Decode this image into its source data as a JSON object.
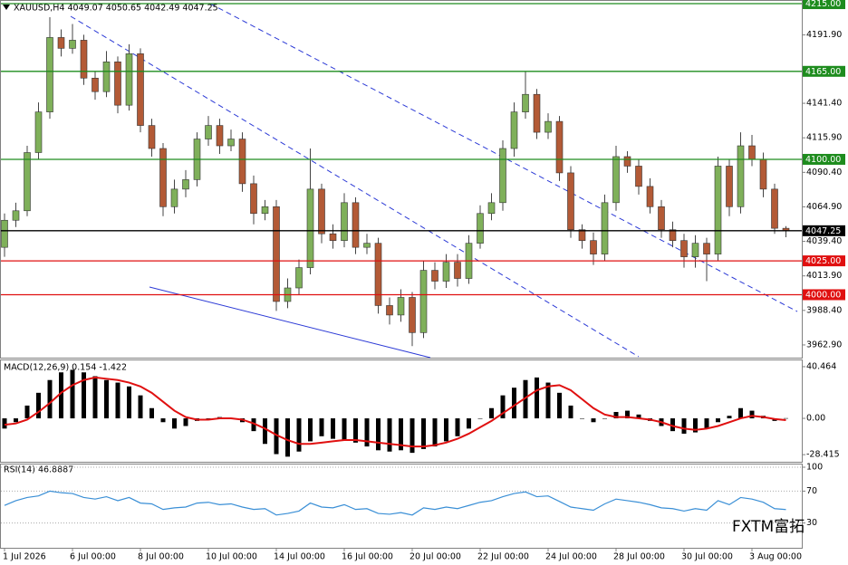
{
  "chart_data": [
    {
      "type": "candlestick",
      "title": "XAUUSD,H4  4049.07 4050.65 4042.49 4047.25",
      "watermark": "FXTM富拓",
      "categories": [
        "1 Jul 2026",
        null,
        null,
        null,
        null,
        null,
        "6 Jul 00:00",
        null,
        null,
        null,
        null,
        null,
        "8 Jul 00:00",
        null,
        null,
        null,
        null,
        null,
        "10 Jul 00:00",
        null,
        null,
        null,
        null,
        null,
        "14 Jul 00:00",
        null,
        null,
        null,
        null,
        null,
        "16 Jul 00:00",
        null,
        null,
        null,
        null,
        null,
        "20 Jul 00:00",
        null,
        null,
        null,
        null,
        null,
        "22 Jul 00:00",
        null,
        null,
        null,
        null,
        null,
        "24 Jul 00:00",
        null,
        null,
        null,
        null,
        null,
        "28 Jul 00:00",
        null,
        null,
        null,
        null,
        null,
        "30 Jul 00:00",
        null,
        null,
        null,
        null,
        null,
        "3 Aug 00:00",
        null,
        null,
        null
      ],
      "open": [
        4035,
        4055,
        4062,
        4105,
        4135,
        4190,
        4182,
        4188,
        4160,
        4150,
        4172,
        4140,
        4178,
        4125,
        4108,
        4065,
        4078,
        4085,
        4115,
        4125,
        4110,
        4115,
        4082,
        4060,
        4065,
        3995,
        4005,
        4020,
        4078,
        4045,
        4040,
        4068,
        4035,
        4038,
        3992,
        3985,
        3998,
        3972,
        4018,
        4010,
        4024,
        4012,
        4038,
        4060,
        4068,
        4108,
        4135,
        4148,
        4120,
        4128,
        4090,
        4048,
        4040,
        4030,
        4068,
        4102,
        4095,
        4080,
        4065,
        4048,
        4040,
        4028,
        4038,
        4030,
        4095,
        4065,
        4110,
        4100,
        4078,
        4049.07
      ],
      "high": [
        4060,
        4068,
        4110,
        4142,
        4205,
        4196,
        4200,
        4192,
        4165,
        4180,
        4176,
        4185,
        4182,
        4130,
        4112,
        4085,
        4092,
        4120,
        4132,
        4130,
        4122,
        4120,
        4088,
        4070,
        4070,
        4012,
        4026,
        4108,
        4082,
        4052,
        4075,
        4072,
        4045,
        4042,
        3998,
        4004,
        4002,
        4025,
        4024,
        4030,
        4030,
        4044,
        4066,
        4075,
        4114,
        4142,
        4165,
        4152,
        4134,
        4132,
        4095,
        4052,
        4046,
        4074,
        4110,
        4106,
        4100,
        4086,
        4070,
        4054,
        4045,
        4044,
        4042,
        4102,
        4100,
        4120,
        4118,
        4105,
        4082,
        4050.65
      ],
      "low": [
        4028,
        4050,
        4058,
        4100,
        4130,
        4176,
        4178,
        4155,
        4144,
        4146,
        4134,
        4136,
        4120,
        4102,
        4058,
        4060,
        4072,
        4080,
        4110,
        4104,
        4106,
        4076,
        4052,
        4055,
        3988,
        3990,
        4000,
        4015,
        4038,
        4034,
        4035,
        4030,
        4030,
        3986,
        3978,
        3980,
        3962,
        3968,
        4004,
        4005,
        4006,
        4008,
        4034,
        4055,
        4062,
        4102,
        4130,
        4115,
        4115,
        4084,
        4042,
        4034,
        4022,
        4025,
        4062,
        4090,
        4074,
        4060,
        4042,
        4035,
        4020,
        4020,
        4010,
        4025,
        4058,
        4060,
        4095,
        4072,
        4045,
        4042.49
      ],
      "close": [
        4055,
        4062,
        4105,
        4135,
        4190,
        4182,
        4188,
        4160,
        4150,
        4172,
        4140,
        4178,
        4125,
        4108,
        4065,
        4078,
        4085,
        4115,
        4125,
        4110,
        4115,
        4082,
        4060,
        4065,
        3995,
        4005,
        4020,
        4078,
        4045,
        4040,
        4068,
        4035,
        4038,
        3992,
        3985,
        3998,
        3972,
        4018,
        4010,
        4024,
        4012,
        4038,
        4060,
        4068,
        4108,
        4135,
        4148,
        4120,
        4128,
        4090,
        4048,
        4040,
        4030,
        4068,
        4102,
        4095,
        4080,
        4065,
        4048,
        4040,
        4028,
        4038,
        4030,
        4095,
        4065,
        4110,
        4100,
        4078,
        4049.07,
        4047.25
      ],
      "up_color": "#7fb05a",
      "down_color": "#b35a36",
      "ylim": [
        3953.5,
        4217.7
      ],
      "yticks": [
        {
          "value": 4191.9,
          "label": "4191.90"
        },
        {
          "value": 4141.4,
          "label": "4141.40"
        },
        {
          "value": 4115.9,
          "label": "4115.90"
        },
        {
          "value": 4090.4,
          "label": "4090.40"
        },
        {
          "value": 4064.9,
          "label": "4064.90"
        },
        {
          "value": 4039.4,
          "label": "4039.40"
        },
        {
          "value": 4013.9,
          "label": "4013.90"
        },
        {
          "value": 3988.4,
          "label": "3988.40"
        },
        {
          "value": 3962.9,
          "label": "3962.90"
        }
      ],
      "hlines": [
        {
          "value": 4215,
          "label": "4215.00",
          "color": "#1e8c1e"
        },
        {
          "value": 4165,
          "label": "4165.00",
          "color": "#1e8c1e"
        },
        {
          "value": 4100,
          "label": "4100.00",
          "color": "#1e8c1e"
        },
        {
          "value": 4047.25,
          "label": "4047.25",
          "color": "#000000"
        },
        {
          "value": 4025,
          "label": "4025.00",
          "color": "#e01010"
        },
        {
          "value": 4000,
          "label": "4000.00",
          "color": "#e01010"
        }
      ]
    },
    {
      "type": "macd",
      "title": "MACD(12,26,9) 0.154 -1.422",
      "histogram": {
        "color": "#000000",
        "values": [
          -8,
          -3,
          10,
          20,
          30,
          36,
          38,
          36,
          33,
          30,
          28,
          25,
          18,
          8,
          -3,
          -8,
          -6,
          -2,
          0,
          1,
          0,
          -3,
          -10,
          -20,
          -28,
          -30,
          -26,
          -18,
          -14,
          -16,
          -17,
          -19,
          -22,
          -25,
          -26,
          -25,
          -27,
          -24,
          -22,
          -18,
          -14,
          -8,
          0,
          8,
          18,
          24,
          30,
          32,
          28,
          20,
          10,
          0,
          -3,
          0,
          5,
          6,
          3,
          -2,
          -6,
          -10,
          -12,
          -11,
          -8,
          -3,
          2,
          8,
          6,
          2,
          -2,
          0.154
        ]
      },
      "signal": {
        "color": "#e01010",
        "values": [
          -5,
          -4,
          -1,
          5,
          12,
          20,
          26,
          30,
          32,
          31,
          30,
          28,
          25,
          20,
          13,
          6,
          1,
          -1,
          -1,
          0,
          0,
          -1,
          -4,
          -8,
          -13,
          -17,
          -20,
          -20,
          -19,
          -18,
          -17,
          -17,
          -18,
          -19,
          -20,
          -21,
          -22,
          -22,
          -21,
          -19,
          -16,
          -12,
          -7,
          -2,
          4,
          10,
          16,
          22,
          25,
          26,
          22,
          15,
          8,
          3,
          1,
          1,
          0,
          -1,
          -3,
          -6,
          -8,
          -9,
          -8,
          -6,
          -3,
          0,
          2,
          1,
          -0.5,
          -1.422
        ]
      },
      "ylim": [
        -34,
        45.4
      ],
      "yticks": [
        40.464,
        {
          "value": 0,
          "label": "0.00"
        },
        -28.415
      ]
    },
    {
      "type": "line",
      "title": "RSI(14) 46.8887",
      "color": "#3a8fd6",
      "values": [
        52,
        58,
        62,
        64,
        70,
        68,
        67,
        62,
        60,
        63,
        58,
        62,
        55,
        54,
        47,
        49,
        50,
        55,
        56,
        53,
        54,
        50,
        47,
        48,
        40,
        42,
        45,
        55,
        50,
        49,
        53,
        47,
        48,
        42,
        41,
        43,
        40,
        49,
        47,
        50,
        48,
        52,
        56,
        58,
        63,
        67,
        69,
        63,
        64,
        57,
        50,
        48,
        46,
        54,
        60,
        58,
        56,
        53,
        49,
        48,
        45,
        48,
        46,
        58,
        53,
        62,
        60,
        56,
        48,
        46.8887
      ],
      "ylim": [
        0,
        100
      ],
      "yticks": [
        100,
        70,
        30
      ],
      "grid": "dotted"
    }
  ]
}
